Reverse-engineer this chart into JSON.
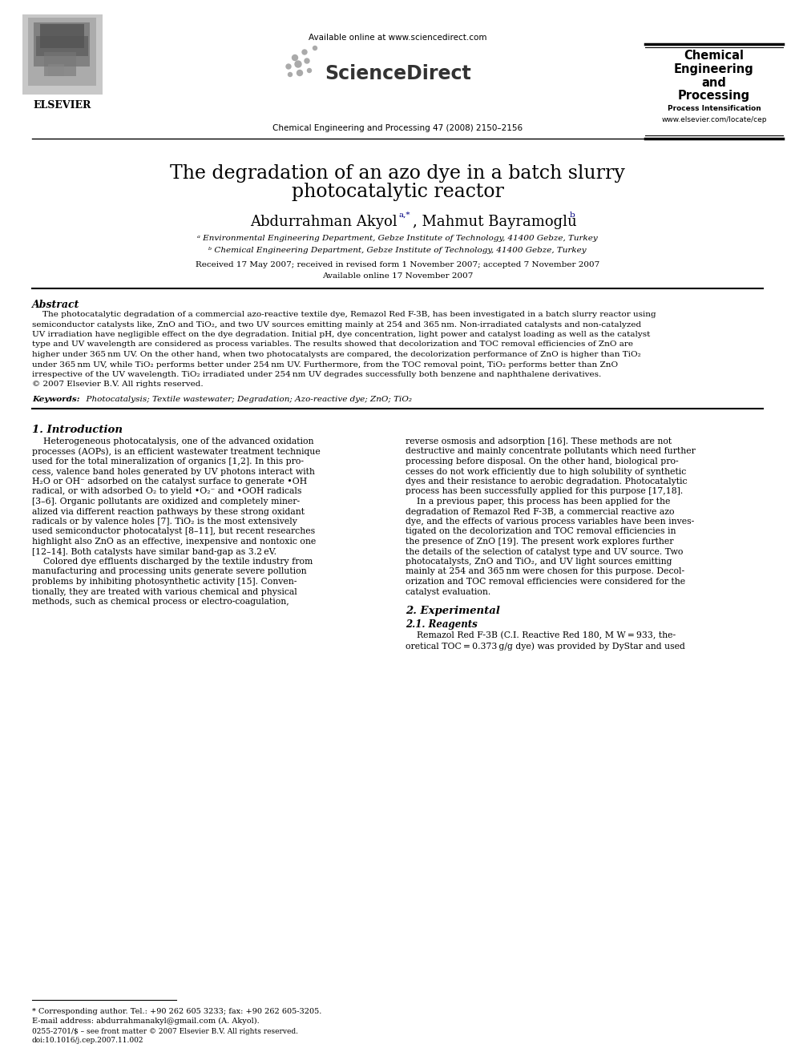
{
  "bg_color": "#ffffff",
  "title_line1": "The degradation of an azo dye in a batch slurry",
  "title_line2": "photocatalytic reactor",
  "author_main": "Abdurrahman Akyol",
  "author_super": "a,*",
  "author_sep": ", Mahmut Bayramoglu ",
  "author_super2": "b",
  "affil_a": "ᵃ Environmental Engineering Department, Gebze Institute of Technology, 41400 Gebze, Turkey",
  "affil_b": "ᵇ Chemical Engineering Department, Gebze Institute of Technology, 41400 Gebze, Turkey",
  "received": "Received 17 May 2007; received in revised form 1 November 2007; accepted 7 November 2007",
  "available": "Available online 17 November 2007",
  "journal_line": "Chemical Engineering and Processing 47 (2008) 2150–2156",
  "url_line": "Available online at www.sciencedirect.com",
  "sciencedirect": "ScienceDirect",
  "journal_box_line1": "Chemical",
  "journal_box_line2": "Engineering",
  "journal_box_line3": "and",
  "journal_box_line4": "Processing",
  "journal_box_sub": "Process Intensification",
  "journal_box_url": "www.elsevier.com/locate/cep",
  "elsevier_text": "ELSEVIER",
  "abstract_title": "Abstract",
  "abstract_body1": "    The photocatalytic degradation of a commercial azo-reactive textile dye, Remazol Red F-3B, has been investigated in a batch slurry reactor using",
  "abstract_body2": "semiconductor catalysts like, ZnO and TiO₂, and two UV sources emitting mainly at 254 and 365 nm. Non-irradiated catalysts and non-catalyzed",
  "abstract_body3": "UV irradiation have negligible effect on the dye degradation. Initial pH, dye concentration, light power and catalyst loading as well as the catalyst",
  "abstract_body4": "type and UV wavelength are considered as process variables. The results showed that decolorization and TOC removal efficiencies of ZnO are",
  "abstract_body5": "higher under 365 nm UV. On the other hand, when two photocatalysts are compared, the decolorization performance of ZnO is higher than TiO₂",
  "abstract_body6": "under 365 nm UV, while TiO₂ performs better under 254 nm UV. Furthermore, from the TOC removal point, TiO₂ performs better than ZnO",
  "abstract_body7": "irrespective of the UV wavelength. TiO₂ irradiated under 254 nm UV degrades successfully both benzene and naphthalene derivatives.",
  "abstract_body8": "© 2007 Elsevier B.V. All rights reserved.",
  "keywords_label": "Keywords:",
  "keywords_text": "  Photocatalysis; Textile wastewater; Degradation; Azo-reactive dye; ZnO; TiO₂",
  "sec1_head": "1. Introduction",
  "c1l01": "    Heterogeneous photocatalysis, one of the advanced oxidation",
  "c1l02": "processes (AOPs), is an efficient wastewater treatment technique",
  "c1l03": "used for the total mineralization of organics [1,2]. In this pro-",
  "c1l04": "cess, valence band holes generated by UV photons interact with",
  "c1l05": "H₂O or OH⁻ adsorbed on the catalyst surface to generate •OH",
  "c1l06": "radical, or with adsorbed O₂ to yield •O₂⁻ and •OOH radicals",
  "c1l07": "[3–6]. Organic pollutants are oxidized and completely miner-",
  "c1l08": "alized via different reaction pathways by these strong oxidant",
  "c1l09": "radicals or by valence holes [7]. TiO₂ is the most extensively",
  "c1l10": "used semiconductor photocatalyst [8–11], but recent researches",
  "c1l11": "highlight also ZnO as an effective, inexpensive and nontoxic one",
  "c1l12": "[12–14]. Both catalysts have similar band-gap as 3.2 eV.",
  "c1l13": "    Colored dye effluents discharged by the textile industry from",
  "c1l14": "manufacturing and processing units generate severe pollution",
  "c1l15": "problems by inhibiting photosynthetic activity [15]. Conven-",
  "c1l16": "tionally, they are treated with various chemical and physical",
  "c1l17": "methods, such as chemical process or electro-coagulation,",
  "c2l01": "reverse osmosis and adsorption [16]. These methods are not",
  "c2l02": "destructive and mainly concentrate pollutants which need further",
  "c2l03": "processing before disposal. On the other hand, biological pro-",
  "c2l04": "cesses do not work efficiently due to high solubility of synthetic",
  "c2l05": "dyes and their resistance to aerobic degradation. Photocatalytic",
  "c2l06": "process has been successfully applied for this purpose [17,18].",
  "c2l07": "    In a previous paper, this process has been applied for the",
  "c2l08": "degradation of Remazol Red F-3B, a commercial reactive azo",
  "c2l09": "dye, and the effects of various process variables have been inves-",
  "c2l10": "tigated on the decolorization and TOC removal efficiencies in",
  "c2l11": "the presence of ZnO [19]. The present work explores further",
  "c2l12": "the details of the selection of catalyst type and UV source. Two",
  "c2l13": "photocatalysts, ZnO and TiO₂, and UV light sources emitting",
  "c2l14": "mainly at 254 and 365 nm were chosen for this purpose. Decol-",
  "c2l15": "orization and TOC removal efficiencies were considered for the",
  "c2l16": "catalyst evaluation.",
  "sec2_head": "2. Experimental",
  "sec21_head": "2.1. Reagents",
  "c2s2l1": "    Remazol Red F-3B (C.I. Reactive Red 180, M W = 933, the-",
  "c2s2l2": "oretical TOC = 0.373 g/g dye) was provided by DyStar and used",
  "fn_line": "——————————",
  "fn_star": "* Corresponding author. Tel.: +90 262 605 3233; fax: +90 262 605-3205.",
  "fn_email": "E-mail address: abdurrahmanakyl@gmail.com (A. Akyol).",
  "fn_issn": "0255-2701/$ – see front matter © 2007 Elsevier B.V. All rights reserved.",
  "fn_doi": "doi:10.1016/j.cep.2007.11.002",
  "ref_color": "#000080",
  "text_color": "#000000",
  "gray_logo": "#888888"
}
